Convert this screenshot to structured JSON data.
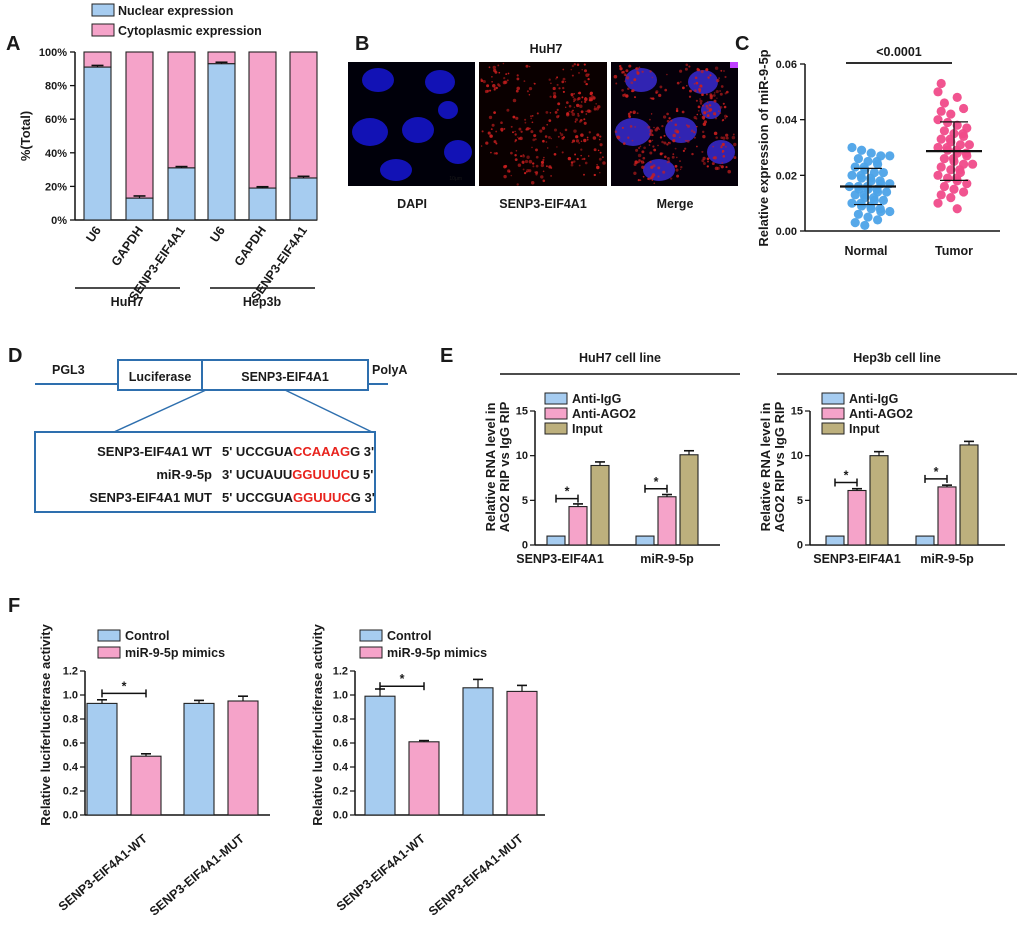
{
  "panels": {
    "A": "A",
    "B": "B",
    "C": "C",
    "D": "D",
    "E": "E",
    "F": "F"
  },
  "colors": {
    "blue": "#a6ccf0",
    "pink": "#f5a3c9",
    "tan": "#bdb07d",
    "red": "#e8231d",
    "frame": "#2e6fae",
    "micro_blue": "#1414c8",
    "micro_red": "#c81e1e",
    "dot_blue": "#4da3e8",
    "dot_pink": "#f04b8a"
  },
  "chart_data": [
    {
      "id": "A",
      "type": "bar",
      "stacked": true,
      "ylabel": "%(Total)",
      "yticks": [
        "0%",
        "20%",
        "40%",
        "60%",
        "80%",
        "100%"
      ],
      "ylim": [
        0,
        100
      ],
      "categories": [
        "U6",
        "GAPDH",
        "SENP3-EIF4A1",
        "U6",
        "GAPDH",
        "SENP3-EIF4A1"
      ],
      "groups": [
        {
          "name": "HuH7",
          "span": [
            0,
            2
          ]
        },
        {
          "name": "Hep3b",
          "span": [
            3,
            5
          ]
        }
      ],
      "series": [
        {
          "name": "Nuclear expression",
          "values": [
            91,
            13,
            31,
            93,
            19,
            25
          ],
          "errors": [
            1.0,
            1.3,
            0.8,
            0.9,
            0.8,
            1.0
          ]
        },
        {
          "name": "Cytoplasmic expression",
          "values": [
            9,
            87,
            69,
            7,
            81,
            75
          ]
        }
      ]
    },
    {
      "id": "C",
      "type": "scatter",
      "ylabel": "Relative expression of miR-9-5p",
      "categories": [
        "Normal",
        "Tumor"
      ],
      "yticks": [
        "0.00",
        "0.02",
        "0.04",
        "0.06"
      ],
      "ylim": [
        0,
        0.06
      ],
      "annotation": "<0.0001",
      "means": [
        0.016,
        0.0287
      ],
      "sds": [
        0.0065,
        0.0105
      ],
      "points": [
        [
          0.03,
          0.029,
          0.028,
          0.027,
          0.027,
          0.026,
          0.025,
          0.025,
          0.024,
          0.023,
          0.023,
          0.022,
          0.021,
          0.021,
          0.02,
          0.02,
          0.019,
          0.019,
          0.018,
          0.018,
          0.017,
          0.017,
          0.016,
          0.016,
          0.016,
          0.015,
          0.015,
          0.015,
          0.014,
          0.014,
          0.013,
          0.013,
          0.012,
          0.012,
          0.011,
          0.011,
          0.01,
          0.01,
          0.009,
          0.009,
          0.008,
          0.008,
          0.007,
          0.007,
          0.006,
          0.005,
          0.004,
          0.003,
          0.002
        ],
        [
          0.053,
          0.05,
          0.048,
          0.046,
          0.044,
          0.043,
          0.042,
          0.04,
          0.039,
          0.038,
          0.037,
          0.036,
          0.035,
          0.035,
          0.034,
          0.033,
          0.033,
          0.032,
          0.031,
          0.031,
          0.03,
          0.03,
          0.029,
          0.029,
          0.028,
          0.028,
          0.027,
          0.026,
          0.026,
          0.025,
          0.024,
          0.024,
          0.023,
          0.022,
          0.022,
          0.021,
          0.02,
          0.019,
          0.019,
          0.018,
          0.017,
          0.016,
          0.015,
          0.014,
          0.013,
          0.012,
          0.01,
          0.008
        ]
      ]
    },
    {
      "id": "E-HuH7",
      "type": "bar",
      "title": "HuH7 cell line",
      "ylabel": "Relative RNA level in AGO2 RIP vs IgG RIP",
      "yticks": [
        "0",
        "5",
        "10",
        "15"
      ],
      "ylim": [
        0,
        15
      ],
      "categories": [
        "SENP3-EIF4A1",
        "miR-9-5p"
      ],
      "legend": [
        "Anti-IgG",
        "Anti-AGO2",
        "Input"
      ],
      "series": [
        {
          "name": "Anti-IgG",
          "values": [
            1.0,
            1.0
          ],
          "errors": [
            0,
            0
          ]
        },
        {
          "name": "Anti-AGO2",
          "values": [
            4.3,
            5.4
          ],
          "errors": [
            0.3,
            0.25
          ]
        },
        {
          "name": "Input",
          "values": [
            8.9,
            10.1
          ],
          "errors": [
            0.4,
            0.45
          ]
        }
      ],
      "significance": [
        "*",
        "*"
      ]
    },
    {
      "id": "E-Hep3b",
      "type": "bar",
      "title": "Hep3b cell line",
      "ylabel": "Relative RNA level in AGO2 RIP vs IgG RIP",
      "yticks": [
        "0",
        "5",
        "10",
        "15"
      ],
      "ylim": [
        0,
        15
      ],
      "categories": [
        "SENP3-EIF4A1",
        "miR-9-5p"
      ],
      "legend": [
        "Anti-IgG",
        "Anti-AGO2",
        "Input"
      ],
      "series": [
        {
          "name": "Anti-IgG",
          "values": [
            1.0,
            1.0
          ],
          "errors": [
            0,
            0
          ]
        },
        {
          "name": "Anti-AGO2",
          "values": [
            6.1,
            6.5
          ],
          "errors": [
            0.2,
            0.2
          ]
        },
        {
          "name": "Input",
          "values": [
            10.0,
            11.2
          ],
          "errors": [
            0.45,
            0.4
          ]
        }
      ],
      "significance": [
        "*",
        "*"
      ]
    },
    {
      "id": "F-1",
      "type": "bar",
      "ylabel": "Relative luciferluciferase activity",
      "yticks": [
        "0.0",
        "0.2",
        "0.4",
        "0.6",
        "0.8",
        "1.0",
        "1.2"
      ],
      "ylim": [
        0,
        1.2
      ],
      "categories": [
        "SENP3-EIF4A1-WT",
        "SENP3-EIF4A1-MUT"
      ],
      "legend": [
        "Control",
        "miR-9-5p mimics"
      ],
      "series": [
        {
          "name": "Control",
          "values": [
            0.93,
            0.93
          ],
          "errors": [
            0.03,
            0.025
          ]
        },
        {
          "name": "miR-9-5p mimics",
          "values": [
            0.49,
            0.95
          ],
          "errors": [
            0.02,
            0.04
          ]
        }
      ],
      "significance": [
        "*",
        ""
      ]
    },
    {
      "id": "F-2",
      "type": "bar",
      "ylabel": "Relative luciferluciferase activity",
      "yticks": [
        "0.0",
        "0.2",
        "0.4",
        "0.6",
        "0.8",
        "1.0",
        "1.2"
      ],
      "ylim": [
        0,
        1.2
      ],
      "categories": [
        "SENP3-EIF4A1-WT",
        "SENP3-EIF4A1-MUT"
      ],
      "legend": [
        "Control",
        "miR-9-5p mimics"
      ],
      "series": [
        {
          "name": "Control",
          "values": [
            0.99,
            1.06
          ],
          "errors": [
            0.06,
            0.07
          ]
        },
        {
          "name": "miR-9-5p mimics",
          "values": [
            0.61,
            1.03
          ],
          "errors": [
            0.01,
            0.05
          ]
        }
      ],
      "significance": [
        "*",
        ""
      ]
    }
  ],
  "micro": {
    "title": "HuH7",
    "labels": [
      "DAPI",
      "SENP3-EIF4A1",
      "Merge"
    ],
    "scale": "10μm"
  },
  "diagram": {
    "pgl3": "PGL3",
    "luciferase": "Luciferase",
    "senp3": "SENP3-EIF4A1",
    "polya": "PolyA",
    "rows": [
      {
        "name": "SENP3-EIF4A1 WT",
        "pre": "5' UCCGUA",
        "hl": "CCAAAG",
        "post": "G 3'"
      },
      {
        "name": "miR-9-5p",
        "pre": "3' UCUAUU",
        "hl": "GGUUUC",
        "post": "U 5'"
      },
      {
        "name": "SENP3-EIF4A1 MUT",
        "pre": "5' UCCGUA",
        "hl": "GGUUUC",
        "post": "G 3'"
      }
    ]
  }
}
